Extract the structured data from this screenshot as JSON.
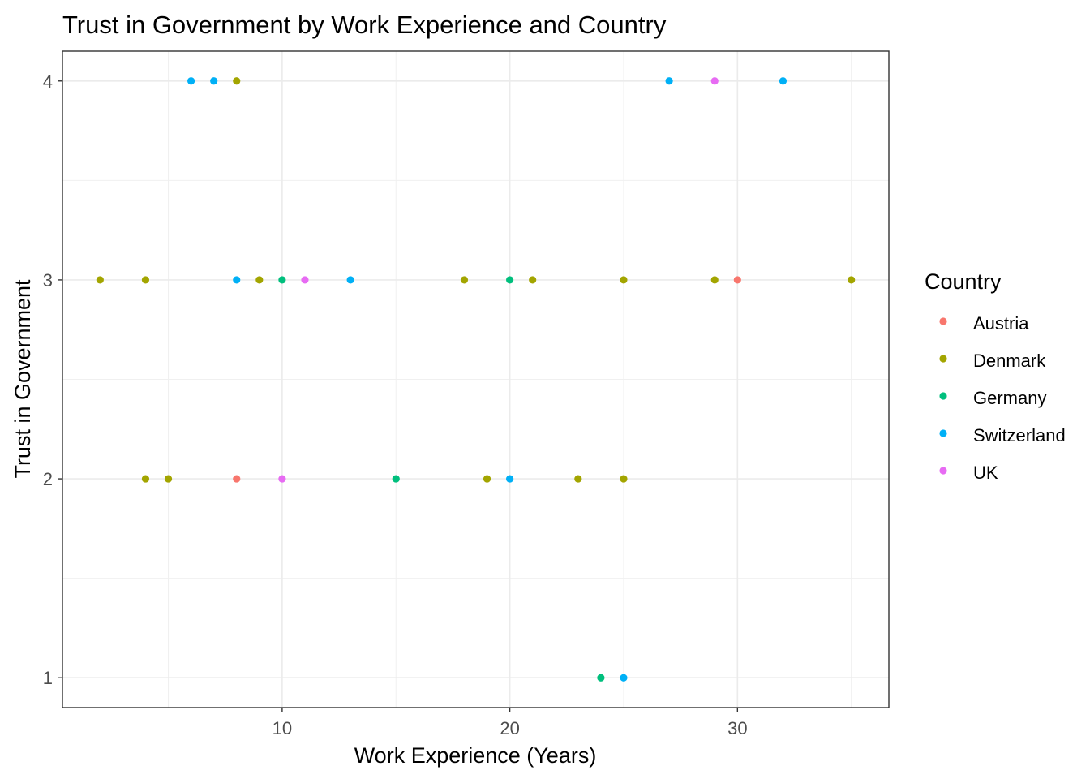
{
  "chart_data": {
    "type": "scatter",
    "title": "Trust in Government by Work Experience and Country",
    "xlabel": "Work Experience (Years)",
    "ylabel": "Trust in Government",
    "xlim": [
      0.35,
      36.65
    ],
    "ylim": [
      0.85,
      4.15
    ],
    "x_ticks": [
      10,
      20,
      30
    ],
    "y_ticks": [
      1,
      2,
      3,
      4
    ],
    "grid": true,
    "legend": {
      "title": "Country",
      "placement": "right",
      "entries": [
        "Austria",
        "Denmark",
        "Germany",
        "Switzerland",
        "UK"
      ]
    },
    "colors": {
      "Austria": "#F8766D",
      "Denmark": "#A3A500",
      "Germany": "#00BF7D",
      "Switzerland": "#00B0F6",
      "UK": "#E76BF3"
    },
    "points": [
      {
        "x": 6,
        "y": 4,
        "country": "Switzerland"
      },
      {
        "x": 7,
        "y": 4,
        "country": "Switzerland"
      },
      {
        "x": 8,
        "y": 4,
        "country": "Denmark"
      },
      {
        "x": 27,
        "y": 4,
        "country": "Switzerland"
      },
      {
        "x": 29,
        "y": 4,
        "country": "UK"
      },
      {
        "x": 32,
        "y": 4,
        "country": "Switzerland"
      },
      {
        "x": 2,
        "y": 3,
        "country": "Denmark"
      },
      {
        "x": 4,
        "y": 3,
        "country": "Denmark"
      },
      {
        "x": 8,
        "y": 3,
        "country": "Switzerland"
      },
      {
        "x": 9,
        "y": 3,
        "country": "Denmark"
      },
      {
        "x": 10,
        "y": 3,
        "country": "Germany"
      },
      {
        "x": 11,
        "y": 3,
        "country": "UK"
      },
      {
        "x": 13,
        "y": 3,
        "country": "Switzerland"
      },
      {
        "x": 18,
        "y": 3,
        "country": "Denmark"
      },
      {
        "x": 20,
        "y": 3,
        "country": "Germany"
      },
      {
        "x": 21,
        "y": 3,
        "country": "Denmark"
      },
      {
        "x": 25,
        "y": 3,
        "country": "Denmark"
      },
      {
        "x": 29,
        "y": 3,
        "country": "Denmark"
      },
      {
        "x": 30,
        "y": 3,
        "country": "Austria"
      },
      {
        "x": 35,
        "y": 3,
        "country": "Denmark"
      },
      {
        "x": 4,
        "y": 2,
        "country": "Denmark"
      },
      {
        "x": 5,
        "y": 2,
        "country": "Denmark"
      },
      {
        "x": 8,
        "y": 2,
        "country": "Austria"
      },
      {
        "x": 10,
        "y": 2,
        "country": "UK"
      },
      {
        "x": 15,
        "y": 2,
        "country": "Germany"
      },
      {
        "x": 19,
        "y": 2,
        "country": "Denmark"
      },
      {
        "x": 20,
        "y": 2,
        "country": "Switzerland"
      },
      {
        "x": 23,
        "y": 2,
        "country": "Denmark"
      },
      {
        "x": 25,
        "y": 2,
        "country": "Denmark"
      },
      {
        "x": 24,
        "y": 1,
        "country": "Germany"
      },
      {
        "x": 25,
        "y": 1,
        "country": "Switzerland"
      }
    ]
  }
}
